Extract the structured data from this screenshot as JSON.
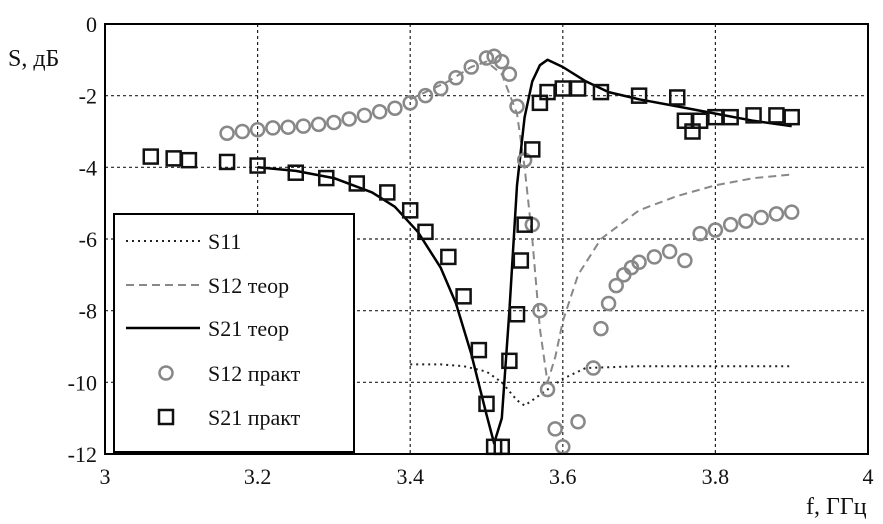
{
  "chart_data": {
    "type": "line",
    "xlabel": "f, ГГц",
    "ylabel": "S, дБ",
    "xlim": [
      3,
      4
    ],
    "ylim": [
      -12,
      0
    ],
    "x_ticks": [
      "3",
      "3.2",
      "3.4",
      "3.6",
      "3.8",
      "4"
    ],
    "y_ticks": [
      "0",
      "-2",
      "-4",
      "-6",
      "-8",
      "-10",
      "-12"
    ],
    "grid": true,
    "legend_position": "bottom-left",
    "series": [
      {
        "name": "S11",
        "style": "dotted",
        "color": "#222222",
        "x": [
          3.4,
          3.44,
          3.47,
          3.5,
          3.52,
          3.54,
          3.55,
          3.56,
          3.58,
          3.6,
          3.63,
          3.7,
          3.8,
          3.9
        ],
        "y": [
          -9.5,
          -9.5,
          -9.55,
          -9.7,
          -10.0,
          -10.5,
          -10.65,
          -10.5,
          -10.2,
          -9.9,
          -9.6,
          -9.55,
          -9.55,
          -9.55
        ]
      },
      {
        "name": "S12 теор",
        "style": "dashed",
        "color": "#888888",
        "x": [
          3.4,
          3.45,
          3.48,
          3.5,
          3.52,
          3.54,
          3.55,
          3.56,
          3.57,
          3.58,
          3.59,
          3.6,
          3.62,
          3.65,
          3.7,
          3.75,
          3.8,
          3.85,
          3.9
        ],
        "y": [
          -2.1,
          -1.6,
          -1.2,
          -1.05,
          -1.4,
          -2.5,
          -4.0,
          -6.0,
          -8.5,
          -10.0,
          -9.3,
          -8.3,
          -7.0,
          -6.0,
          -5.2,
          -4.8,
          -4.5,
          -4.3,
          -4.2
        ]
      },
      {
        "name": "S21 теор",
        "style": "solid",
        "color": "#000000",
        "x": [
          3.2,
          3.25,
          3.3,
          3.35,
          3.38,
          3.41,
          3.44,
          3.46,
          3.48,
          3.5,
          3.51,
          3.52,
          3.53,
          3.54,
          3.55,
          3.56,
          3.57,
          3.58,
          3.6,
          3.63,
          3.66,
          3.7,
          3.75,
          3.8,
          3.85,
          3.9
        ],
        "y": [
          -4.0,
          -4.1,
          -4.3,
          -4.7,
          -5.1,
          -5.8,
          -6.8,
          -7.8,
          -9.2,
          -10.9,
          -11.7,
          -11.0,
          -8.0,
          -4.5,
          -2.6,
          -1.6,
          -1.15,
          -1.0,
          -1.2,
          -1.6,
          -1.9,
          -2.1,
          -2.3,
          -2.5,
          -2.7,
          -2.85
        ]
      },
      {
        "name": "S12 практ",
        "style": "circle",
        "color": "#888888",
        "x": [
          3.16,
          3.18,
          3.2,
          3.22,
          3.24,
          3.26,
          3.28,
          3.3,
          3.32,
          3.34,
          3.36,
          3.38,
          3.4,
          3.42,
          3.44,
          3.46,
          3.48,
          3.5,
          3.51,
          3.52,
          3.53,
          3.54,
          3.55,
          3.56,
          3.57,
          3.58,
          3.59,
          3.6,
          3.62,
          3.64,
          3.65,
          3.66,
          3.67,
          3.68,
          3.69,
          3.7,
          3.72,
          3.74,
          3.76,
          3.78,
          3.8,
          3.82,
          3.84,
          3.86,
          3.88,
          3.9
        ],
        "y": [
          -3.05,
          -3.0,
          -2.95,
          -2.9,
          -2.88,
          -2.85,
          -2.8,
          -2.75,
          -2.65,
          -2.55,
          -2.45,
          -2.35,
          -2.2,
          -2.0,
          -1.8,
          -1.5,
          -1.2,
          -0.95,
          -0.9,
          -1.05,
          -1.4,
          -2.3,
          -3.8,
          -5.6,
          -8.0,
          -10.2,
          -11.3,
          -11.8,
          -11.1,
          -9.6,
          -8.5,
          -7.8,
          -7.3,
          -7.0,
          -6.8,
          -6.65,
          -6.5,
          -6.35,
          -6.6,
          -5.85,
          -5.75,
          -5.6,
          -5.5,
          -5.4,
          -5.3,
          -5.25
        ]
      },
      {
        "name": "S21 практ",
        "style": "square",
        "color": "#111111",
        "x": [
          3.06,
          3.09,
          3.11,
          3.16,
          3.2,
          3.25,
          3.29,
          3.33,
          3.37,
          3.4,
          3.42,
          3.45,
          3.47,
          3.49,
          3.5,
          3.51,
          3.52,
          3.53,
          3.54,
          3.545,
          3.55,
          3.56,
          3.57,
          3.58,
          3.6,
          3.62,
          3.65,
          3.7,
          3.75,
          3.76,
          3.77,
          3.78,
          3.8,
          3.82,
          3.85,
          3.88,
          3.9
        ],
        "y": [
          -3.7,
          -3.75,
          -3.8,
          -3.85,
          -3.95,
          -4.15,
          -4.3,
          -4.45,
          -4.7,
          -5.2,
          -5.8,
          -6.5,
          -7.6,
          -9.1,
          -10.6,
          -11.8,
          -11.8,
          -9.4,
          -8.1,
          -6.6,
          -5.6,
          -3.5,
          -2.2,
          -1.9,
          -1.8,
          -1.8,
          -1.9,
          -2.0,
          -2.05,
          -2.7,
          -3.0,
          -2.7,
          -2.6,
          -2.6,
          -2.55,
          -2.55,
          -2.6
        ]
      }
    ]
  }
}
